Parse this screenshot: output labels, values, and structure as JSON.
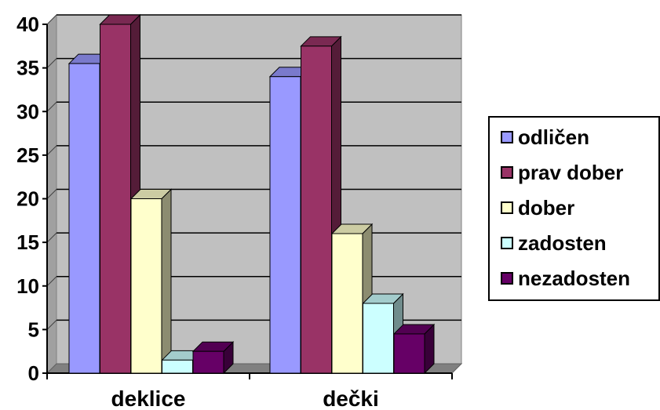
{
  "chart_data": {
    "type": "bar",
    "categories": [
      "deklice",
      "dečki"
    ],
    "series": [
      {
        "name": "odličen",
        "values": [
          35.5,
          34
        ],
        "color": "#9999FF"
      },
      {
        "name": "prav dober",
        "values": [
          40,
          37.5
        ],
        "color": "#993366"
      },
      {
        "name": "dober",
        "values": [
          20,
          16
        ],
        "color": "#FFFFCC"
      },
      {
        "name": "zadosten",
        "values": [
          1.5,
          8
        ],
        "color": "#CCFFFF"
      },
      {
        "name": "nezadosten",
        "values": [
          2.5,
          4.5
        ],
        "color": "#660066"
      }
    ],
    "ylim": [
      0,
      40
    ],
    "yticks": [
      "0",
      "5",
      "10",
      "15",
      "20",
      "25",
      "30",
      "35",
      "40"
    ],
    "grid": true,
    "legend_position": "right",
    "title": "",
    "xlabel": "",
    "ylabel": ""
  }
}
